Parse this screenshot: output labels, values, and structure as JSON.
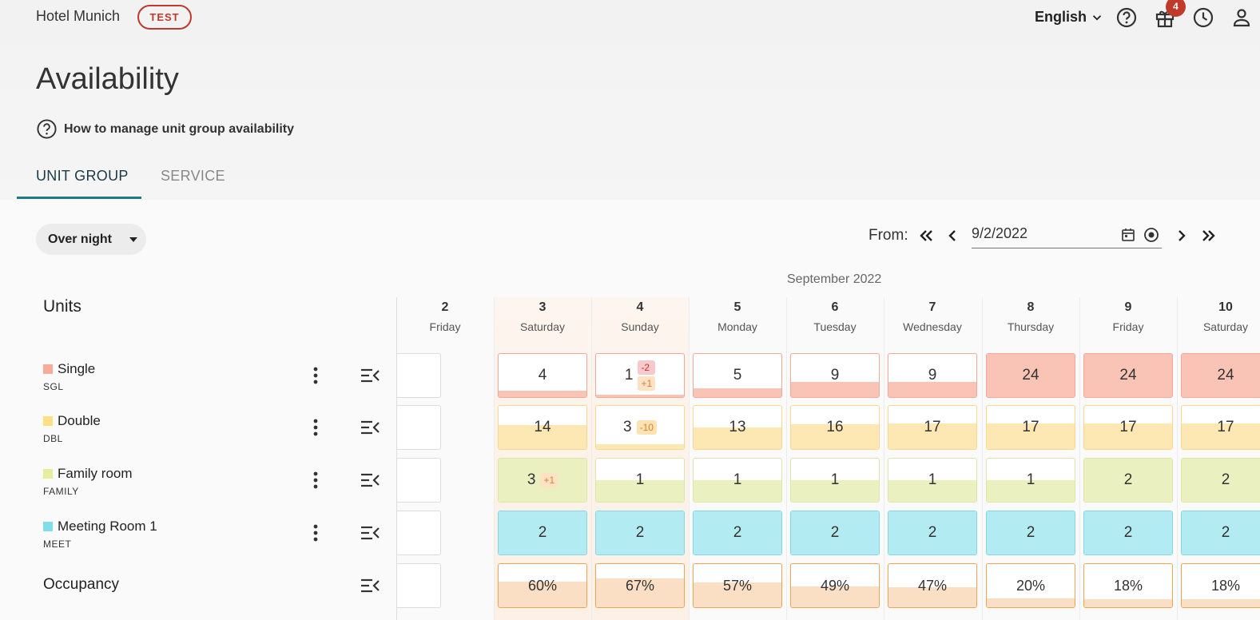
{
  "header": {
    "hotel_name": "Hotel Munich",
    "env_badge": "TEST",
    "language": "English",
    "notifications_count": "4",
    "icons": [
      "help-icon",
      "gift-icon",
      "history-icon",
      "account-icon"
    ]
  },
  "page": {
    "title": "Availability",
    "help_link": "How to manage unit group availability",
    "tabs": [
      {
        "label": "UNIT GROUP",
        "active": true
      },
      {
        "label": "SERVICE",
        "active": false
      }
    ]
  },
  "controls": {
    "mode": "Over night",
    "from_label": "From:",
    "date": "9/2/2022"
  },
  "grid": {
    "month": "September 2022",
    "units_heading": "Units",
    "days": [
      {
        "num": "2",
        "name": "Friday",
        "weekend": true
      },
      {
        "num": "3",
        "name": "Saturday",
        "weekend": true
      },
      {
        "num": "4",
        "name": "Sunday",
        "weekend": true
      },
      {
        "num": "5",
        "name": "Monday",
        "weekend": false
      },
      {
        "num": "6",
        "name": "Tuesday",
        "weekend": false
      },
      {
        "num": "7",
        "name": "Wednesday",
        "weekend": false
      },
      {
        "num": "8",
        "name": "Thursday",
        "weekend": false
      },
      {
        "num": "9",
        "name": "Friday",
        "weekend": false
      },
      {
        "num": "10",
        "name": "Saturday",
        "weekend": false
      }
    ],
    "rows": [
      {
        "name": "Single",
        "code": "SGL",
        "color": "#f8ab98",
        "fill": "#f9c4b6",
        "border": "#f1a896",
        "cells": [
          {
            "value": "4",
            "fill_fraction": 0.15
          },
          {
            "value": "1",
            "fill_fraction": 0.05,
            "deltas": [
              {
                "text": "-2",
                "type": "neg"
              },
              {
                "text": "+1",
                "type": "pos"
              }
            ]
          },
          {
            "value": "5",
            "fill_fraction": 0.2
          },
          {
            "value": "9",
            "fill_fraction": 0.35
          },
          {
            "value": "9",
            "fill_fraction": 0.35
          },
          {
            "value": "24",
            "fill_fraction": 1
          },
          {
            "value": "24",
            "fill_fraction": 1
          },
          {
            "value": "24",
            "fill_fraction": 1
          }
        ]
      },
      {
        "name": "Double",
        "code": "DBL",
        "color": "#fde083",
        "fill": "#fde7b2",
        "border": "#f6d98a",
        "cells": [
          {
            "value": "14",
            "fill_fraction": 0.55
          },
          {
            "value": "3",
            "fill_fraction": 0.12,
            "deltas": [
              {
                "text": "-10",
                "type": "warn"
              }
            ]
          },
          {
            "value": "13",
            "fill_fraction": 0.5
          },
          {
            "value": "16",
            "fill_fraction": 0.57
          },
          {
            "value": "17",
            "fill_fraction": 0.6
          },
          {
            "value": "17",
            "fill_fraction": 0.6
          },
          {
            "value": "17",
            "fill_fraction": 0.6
          },
          {
            "value": "17",
            "fill_fraction": 0.6
          }
        ]
      },
      {
        "name": "Family room",
        "code": "FAMILY",
        "color": "#e6ee9c",
        "fill": "#eaf0c0",
        "border": "#dde7a4",
        "cells": [
          {
            "value": "3",
            "fill_fraction": 1,
            "deltas": [
              {
                "text": "+1",
                "type": "pos"
              }
            ]
          },
          {
            "value": "1",
            "fill_fraction": 0.5
          },
          {
            "value": "1",
            "fill_fraction": 0.5
          },
          {
            "value": "1",
            "fill_fraction": 0.5
          },
          {
            "value": "1",
            "fill_fraction": 0.5
          },
          {
            "value": "1",
            "fill_fraction": 0.5
          },
          {
            "value": "2",
            "fill_fraction": 1
          },
          {
            "value": "2",
            "fill_fraction": 1
          }
        ]
      },
      {
        "name": "Meeting Room 1",
        "code": "MEET",
        "color": "#80deea",
        "fill": "#b3ebf2",
        "border": "#86d5e3",
        "cells": [
          {
            "value": "2",
            "fill_fraction": 1
          },
          {
            "value": "2",
            "fill_fraction": 1
          },
          {
            "value": "2",
            "fill_fraction": 1
          },
          {
            "value": "2",
            "fill_fraction": 1
          },
          {
            "value": "2",
            "fill_fraction": 1
          },
          {
            "value": "2",
            "fill_fraction": 1
          },
          {
            "value": "2",
            "fill_fraction": 1
          },
          {
            "value": "2",
            "fill_fraction": 1
          }
        ]
      }
    ],
    "occupancy": {
      "label": "Occupancy",
      "fill": "#fadfc5",
      "border": "#f0a44f",
      "cells": [
        {
          "value": "60%",
          "fill_fraction": 0.6
        },
        {
          "value": "67%",
          "fill_fraction": 0.67
        },
        {
          "value": "57%",
          "fill_fraction": 0.57
        },
        {
          "value": "49%",
          "fill_fraction": 0.49
        },
        {
          "value": "47%",
          "fill_fraction": 0.47
        },
        {
          "value": "20%",
          "fill_fraction": 0.2
        },
        {
          "value": "18%",
          "fill_fraction": 0.18
        },
        {
          "value": "18%",
          "fill_fraction": 0.18
        }
      ]
    }
  }
}
